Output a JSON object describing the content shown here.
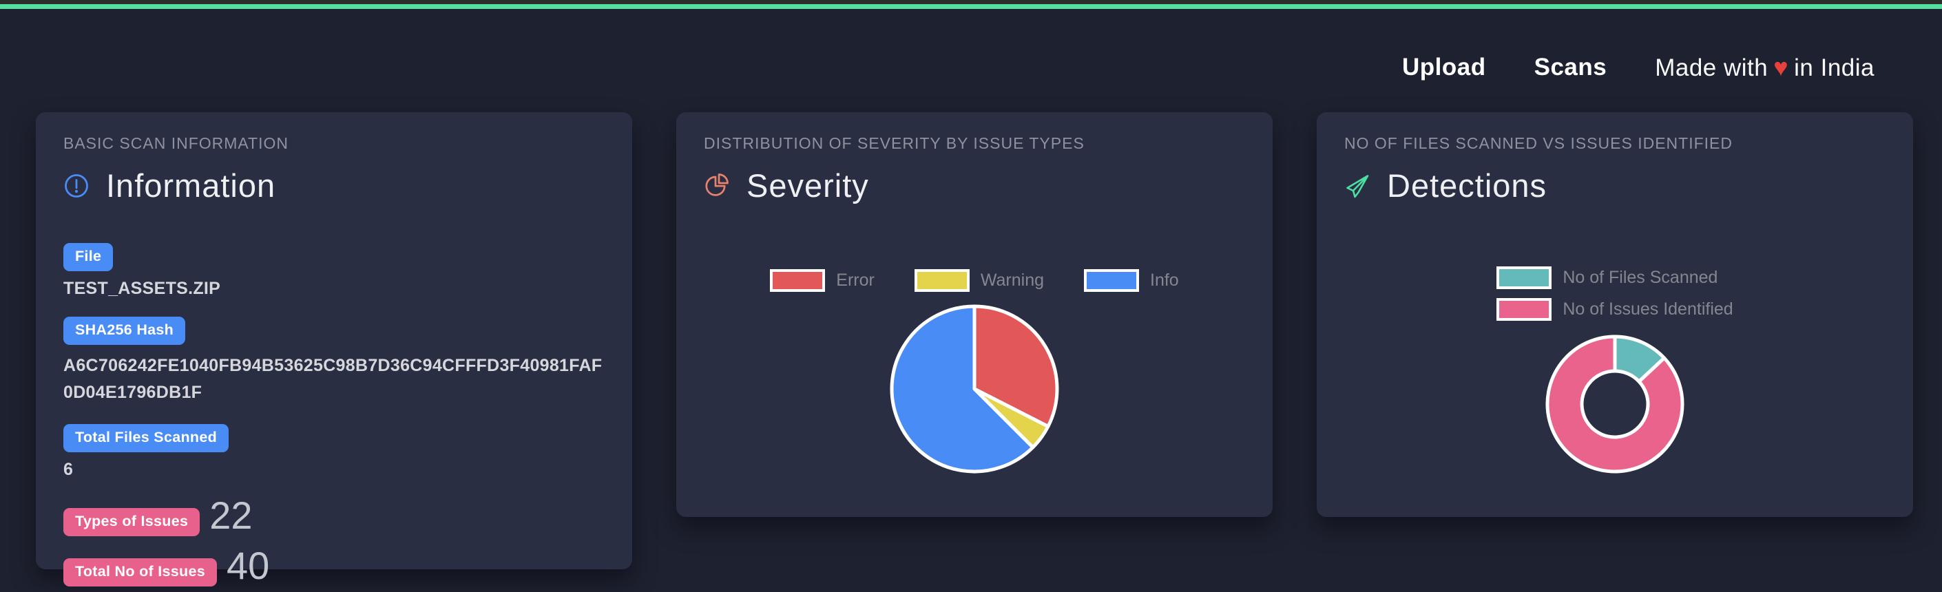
{
  "navbar": {
    "links": [
      {
        "label": "Upload"
      },
      {
        "label": "Scans"
      }
    ],
    "tagline": {
      "prefix": "Made with",
      "heart": "♥",
      "suffix": "in India",
      "heart_color": "#e8413c"
    }
  },
  "theme": {
    "top_accent_color": "#55e0a3",
    "page_bg": "#1e212f",
    "card_bg": "#2a2e42",
    "badge_blue": "#4a8cf5",
    "badge_pink": "#e8618c",
    "heading_color": "#eef0f3",
    "muted_label_color": "#8e92a0"
  },
  "cards": {
    "information": {
      "section_label": "BASIC SCAN INFORMATION",
      "title": "Information",
      "icon": "info-circle-icon",
      "fields": [
        {
          "badge": "File",
          "badge_color": "#4a8cf5",
          "value": "TEST_ASSETS.ZIP"
        },
        {
          "badge": "SHA256 Hash",
          "badge_color": "#4a8cf5",
          "value": "A6C706242FE1040FB94B53625C98B7D36C94CFFFD3F40981FAF0D04E1796DB1F"
        },
        {
          "badge": "Total Files Scanned",
          "badge_color": "#4a8cf5",
          "value": "6"
        },
        {
          "badge": "Types of Issues",
          "badge_color": "#e8618c",
          "value": "22"
        },
        {
          "badge": "Total No of Issues",
          "badge_color": "#e8618c",
          "value": "40"
        }
      ]
    },
    "severity": {
      "section_label": "DISTRIBUTION OF SEVERITY BY ISSUE TYPES",
      "title": "Severity",
      "icon": "pie-chart-icon",
      "icon_color": "#e8826d"
    },
    "detections": {
      "section_label": "NO OF FILES SCANNED VS ISSUES IDENTIFIED",
      "title": "Detections",
      "icon": "paper-plane-icon",
      "icon_color": "#4ae0a2"
    }
  },
  "chart_data": [
    {
      "type": "pie",
      "title": "Severity",
      "categories": [
        "Error",
        "Warning",
        "Info"
      ],
      "values": [
        13,
        2,
        25
      ],
      "percentages": [
        32.5,
        5,
        62.5
      ],
      "colors": [
        "#e25757",
        "#e3d44c",
        "#4a8cf5"
      ],
      "slice_border_color": "#ffffff",
      "legend_position": "top",
      "start_angle_deg": 0,
      "direction": "clockwise"
    },
    {
      "type": "doughnut",
      "title": "Detections",
      "categories": [
        "No of Files Scanned",
        "No of Issues Identified"
      ],
      "values": [
        6,
        40
      ],
      "colors": [
        "#64baba",
        "#e9638d"
      ],
      "slice_border_color": "#ffffff",
      "legend_position": "top",
      "cutout_ratio": 0.48,
      "start_angle_deg": 0,
      "direction": "clockwise"
    }
  ]
}
